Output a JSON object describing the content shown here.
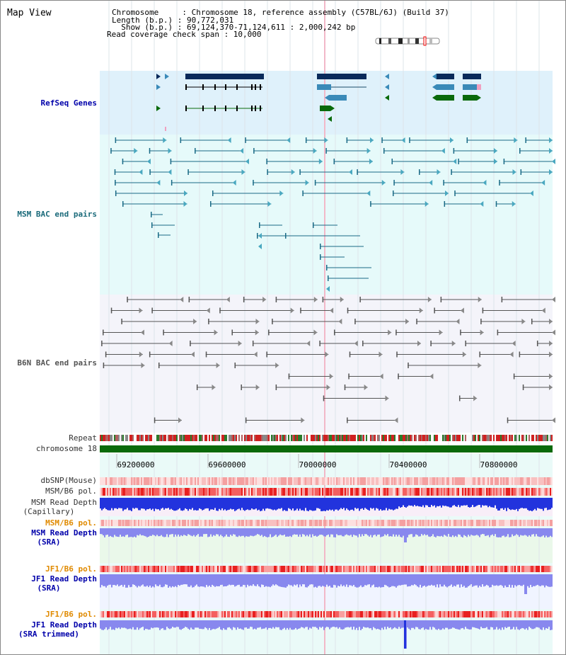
{
  "view_title": "Map View",
  "info": {
    "chromosome_line": "Chromosome     : Chromosome 18, reference assembly (C57BL/6J) (Build 37)",
    "length_line": "Length (b.p.) : 90,772,031",
    "show_line": "  Show (b.p.) : 69,124,370-71,124,611 : 2,000,242 bp",
    "coverage_line": "Read coverage check span : 10,000"
  },
  "tracks": {
    "refseq": "RefSeq Genes",
    "msm_bac": "MSM BAC end pairs",
    "b6n_bac": "B6N BAC end pairs",
    "repeat": "Repeat",
    "chromosome": "chromosome 18",
    "dbsnp": "dbSNP(Mouse)",
    "msm_b6_pol": "MSM/B6 pol.",
    "msm_depth_cap_1": "MSM Read Depth",
    "msm_depth_cap_2": "(Capillary)",
    "msm_b6_pol_2": "MSM/B6 pol.",
    "msm_depth_sra_1": "MSM Read Depth",
    "msm_depth_sra_2": "(SRA)",
    "jf1_b6_pol": "JF1/B6 pol.",
    "jf1_depth_sra_1": "JF1 Read Depth",
    "jf1_depth_sra_2": "(SRA)",
    "jf1_b6_pol_2": "JF1/B6 pol.",
    "jf1_depth_trim_1": "JF1 Read Depth",
    "jf1_depth_trim_2": "(SRA trimmed)"
  },
  "axis": {
    "ticks": [
      "69200000",
      "69600000",
      "70000000",
      "70400000",
      "70800000"
    ]
  },
  "colors": {
    "refseq_bg": "#dff1fb",
    "msm_bg": "#e6fafa",
    "b6n_bg": "#f4f4fa",
    "gene_dark": "#0a2a5a",
    "gene_mid": "#3a8ab8",
    "gene_green": "#0a6a0a",
    "msm_line": "#1a6a86",
    "b6n_line": "#555555",
    "chromosome": "#0a6a0a",
    "depth_blue": "#2233dd",
    "depth_light": "#8888ee"
  }
}
